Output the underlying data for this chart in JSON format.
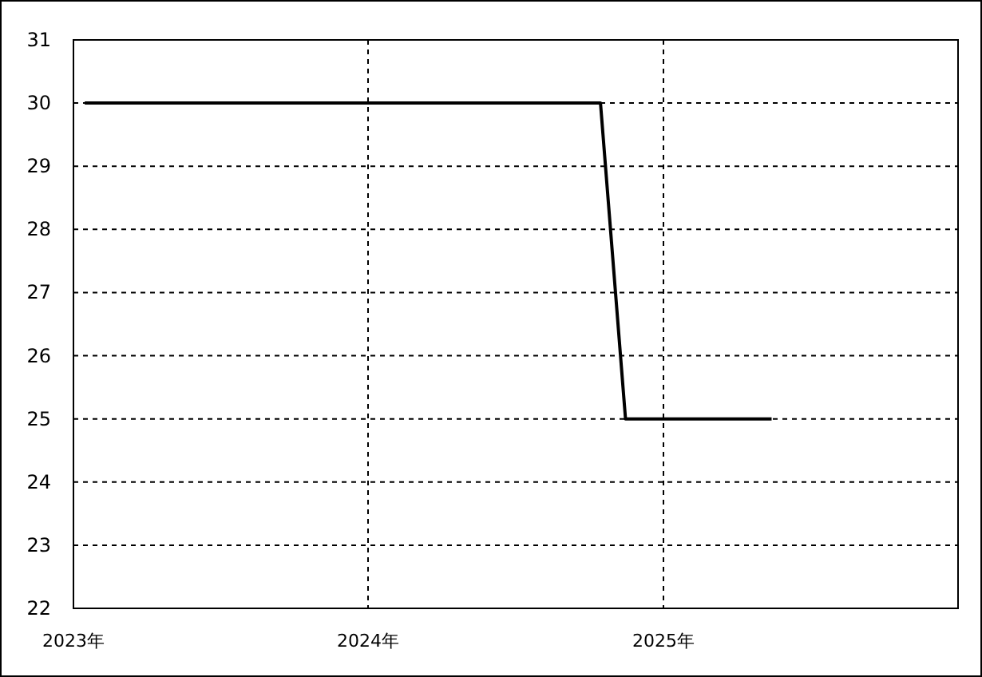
{
  "chart_data": {
    "type": "line",
    "x": [
      "2023-01-15",
      "2024-10-15",
      "2024-11-15",
      "2025-05-15"
    ],
    "series": [
      {
        "color": "#000000",
        "values": [
          30,
          30,
          25,
          25
        ]
      }
    ],
    "xlim": [
      "2023-01-01",
      "2026-01-01"
    ],
    "xticks": [
      {
        "value": "2023-01-01",
        "label": "2023年"
      },
      {
        "value": "2024-01-01",
        "label": "2024年"
      },
      {
        "value": "2025-01-01",
        "label": "2025年"
      }
    ],
    "ylim": [
      22,
      31
    ],
    "yticks": [
      22,
      23,
      24,
      25,
      26,
      27,
      28,
      29,
      30,
      31
    ],
    "grid": true
  }
}
